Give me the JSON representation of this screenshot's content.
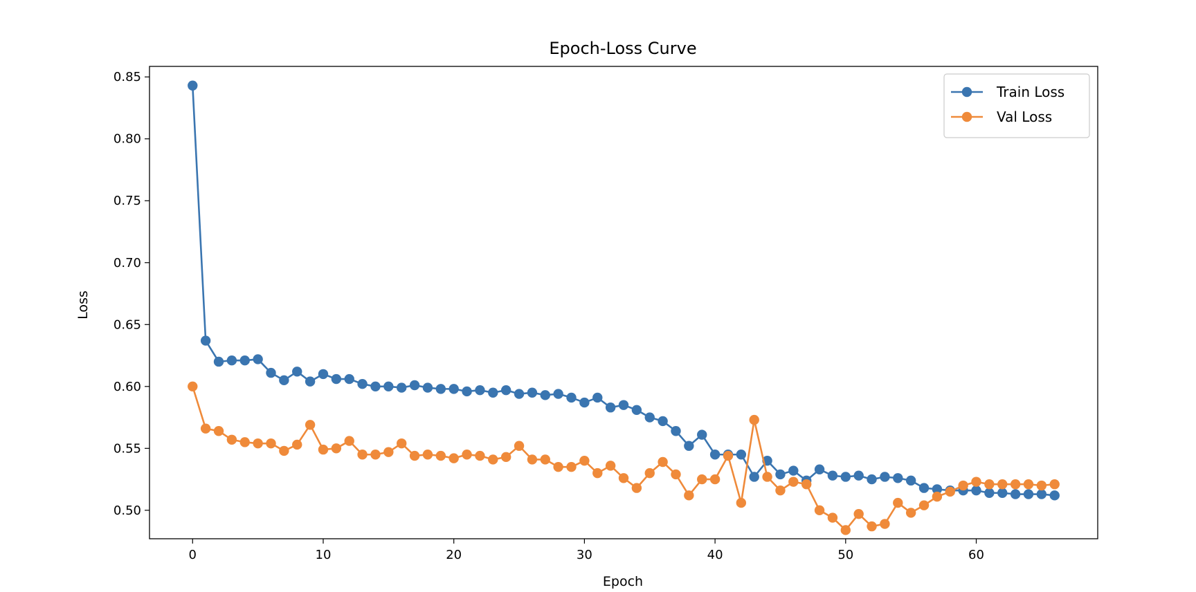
{
  "chart_data": {
    "type": "line",
    "title": "Epoch-Loss Curve",
    "xlabel": "Epoch",
    "ylabel": "Loss",
    "xlim": [
      -3.3,
      69.3
    ],
    "ylim": [
      0.477,
      0.8585
    ],
    "xticks": [
      0,
      10,
      20,
      30,
      40,
      50,
      60
    ],
    "yticks": [
      0.5,
      0.55,
      0.6,
      0.65,
      0.7,
      0.75,
      0.8,
      0.85
    ],
    "ytick_labels": [
      "0.50",
      "0.55",
      "0.60",
      "0.65",
      "0.70",
      "0.75",
      "0.80",
      "0.85"
    ],
    "grid": false,
    "legend_position": "top-right",
    "x": [
      0,
      1,
      2,
      3,
      4,
      5,
      6,
      7,
      8,
      9,
      10,
      11,
      12,
      13,
      14,
      15,
      16,
      17,
      18,
      19,
      20,
      21,
      22,
      23,
      24,
      25,
      26,
      27,
      28,
      29,
      30,
      31,
      32,
      33,
      34,
      35,
      36,
      37,
      38,
      39,
      40,
      41,
      42,
      43,
      44,
      45,
      46,
      47,
      48,
      49,
      50,
      51,
      52,
      53,
      54,
      55,
      56,
      57,
      58,
      59,
      60,
      61,
      62,
      63,
      64,
      65,
      66
    ],
    "series": [
      {
        "name": "Train Loss",
        "color": "#3a75b0",
        "values": [
          0.843,
          0.637,
          0.62,
          0.621,
          0.621,
          0.622,
          0.611,
          0.605,
          0.612,
          0.604,
          0.61,
          0.606,
          0.606,
          0.602,
          0.6,
          0.6,
          0.599,
          0.601,
          0.599,
          0.598,
          0.598,
          0.596,
          0.597,
          0.595,
          0.597,
          0.594,
          0.595,
          0.593,
          0.594,
          0.591,
          0.587,
          0.591,
          0.583,
          0.585,
          0.581,
          0.575,
          0.572,
          0.564,
          0.552,
          0.561,
          0.545,
          0.545,
          0.545,
          0.527,
          0.54,
          0.529,
          0.532,
          0.524,
          0.533,
          0.528,
          0.527,
          0.528,
          0.525,
          0.527,
          0.526,
          0.524,
          0.518,
          0.517,
          0.516,
          0.516,
          0.516,
          0.514,
          0.514,
          0.513,
          0.513,
          0.513,
          0.512
        ]
      },
      {
        "name": "Val Loss",
        "color": "#ef8a3a",
        "values": [
          0.6,
          0.566,
          0.564,
          0.557,
          0.555,
          0.554,
          0.554,
          0.548,
          0.553,
          0.569,
          0.549,
          0.55,
          0.556,
          0.545,
          0.545,
          0.547,
          0.554,
          0.544,
          0.545,
          0.544,
          0.542,
          0.545,
          0.544,
          0.541,
          0.543,
          0.552,
          0.541,
          0.541,
          0.535,
          0.535,
          0.54,
          0.53,
          0.536,
          0.526,
          0.518,
          0.53,
          0.539,
          0.529,
          0.512,
          0.525,
          0.525,
          0.544,
          0.506,
          0.573,
          0.527,
          0.516,
          0.523,
          0.521,
          0.5,
          0.494,
          0.484,
          0.497,
          0.487,
          0.489,
          0.506,
          0.498,
          0.504,
          0.511,
          0.515,
          0.52,
          0.523,
          0.521,
          0.521,
          0.521,
          0.521,
          0.52,
          0.521
        ]
      }
    ]
  }
}
